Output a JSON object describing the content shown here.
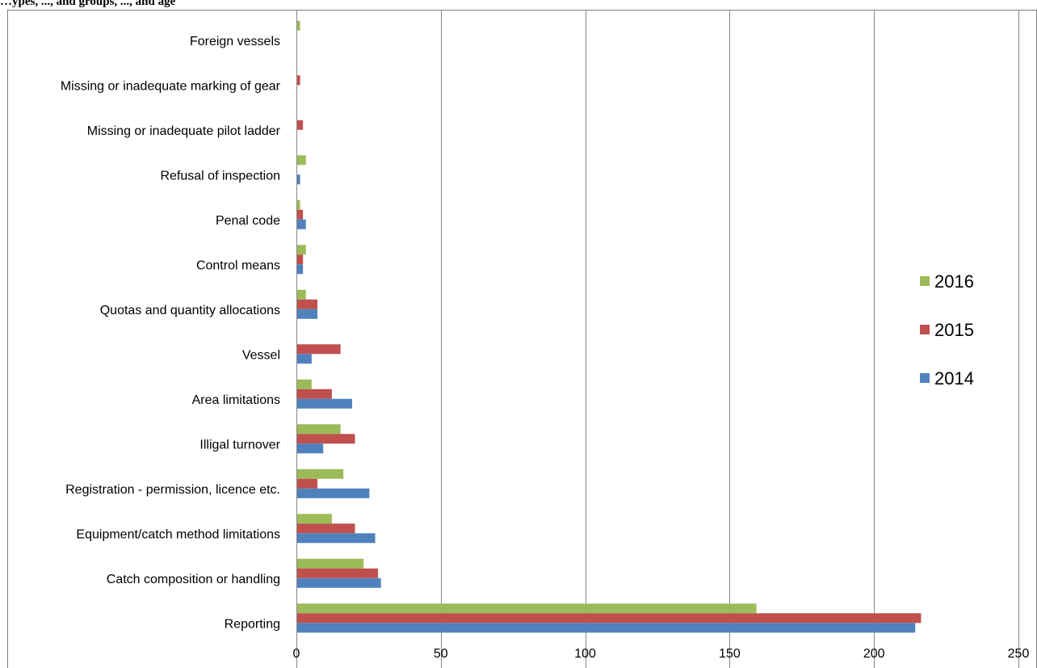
{
  "header": {
    "caption": "…ypes, ..., and groups, ..., and age"
  },
  "chart_data": {
    "type": "bar",
    "orientation": "horizontal",
    "title": "",
    "xlabel": "",
    "ylabel": "",
    "xlim": [
      0,
      250
    ],
    "x_ticks": [
      0,
      50,
      100,
      150,
      200,
      250
    ],
    "grid": "vertical major gridlines",
    "legend_position": "right",
    "categories": [
      "Foreign vessels",
      "Missing or inadequate marking of gear",
      "Missing or inadequate pilot ladder",
      "Refusal of inspection",
      "Penal code",
      "Control means",
      "Quotas and quantity allocations",
      "Vessel",
      "Area limitations",
      "Illigal turnover",
      "Registration - permission, licence etc.",
      "Equipment/catch method limitations",
      "Catch composition or handling",
      "Reporting"
    ],
    "series": [
      {
        "name": "2016",
        "color": "#9BBB59",
        "values": [
          1,
          0,
          0,
          3,
          1,
          3,
          3,
          0,
          5,
          15,
          16,
          12,
          23,
          159
        ]
      },
      {
        "name": "2015",
        "color": "#C0504D",
        "values": [
          0,
          1,
          2,
          0,
          2,
          2,
          7,
          15,
          12,
          20,
          7,
          20,
          28,
          216
        ]
      },
      {
        "name": "2014",
        "color": "#4F81BD",
        "values": [
          0,
          0,
          0,
          1,
          3,
          2,
          7,
          5,
          19,
          9,
          25,
          27,
          29,
          214
        ]
      }
    ]
  }
}
